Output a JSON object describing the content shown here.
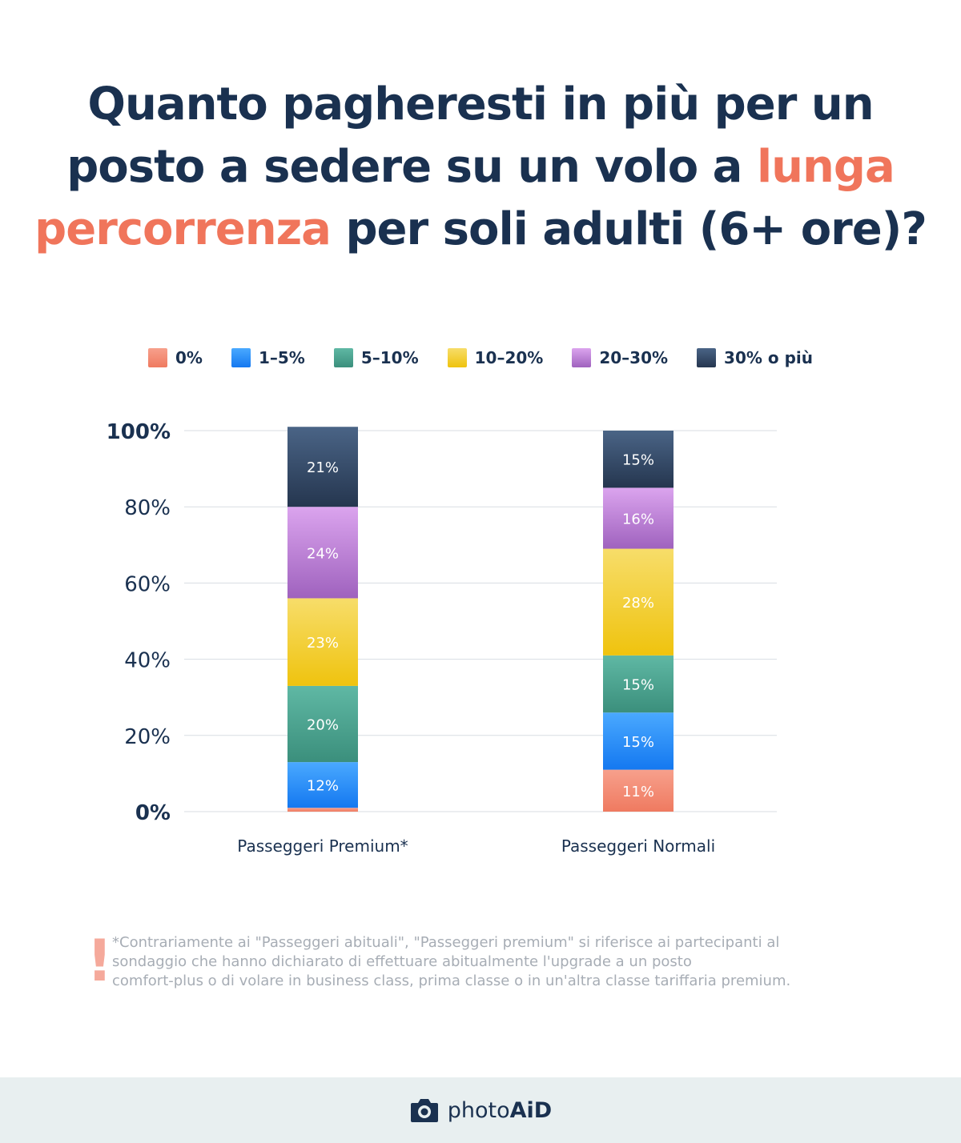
{
  "title": {
    "line1": "Quanto pagheresti in più per un",
    "line2_start": "posto a sedere su un volo a ",
    "line2_highlight": "lunga",
    "line3_highlight": "percorrenza",
    "line3_end": " per soli adulti (6+ ore)?"
  },
  "colors": {
    "title": "#1a3150",
    "highlight": "#f0755b"
  },
  "chart_data": {
    "type": "bar",
    "stacked": true,
    "categories": [
      "Passeggeri Premium*",
      "Passeggeri Normali"
    ],
    "series": [
      {
        "name": "0%",
        "values": [
          1,
          11
        ],
        "labels": [
          "",
          "11%"
        ],
        "color_top": "#f7a08c",
        "color_bottom": "#ef7a60"
      },
      {
        "name": "1–5%",
        "values": [
          12,
          15
        ],
        "labels": [
          "12%",
          "15%"
        ],
        "color_top": "#4aa9ff",
        "color_bottom": "#1478f0"
      },
      {
        "name": "5–10%",
        "values": [
          20,
          15
        ],
        "labels": [
          "20%",
          "15%"
        ],
        "color_top": "#5fb8a4",
        "color_bottom": "#3b8f7c"
      },
      {
        "name": "10–20%",
        "values": [
          23,
          28
        ],
        "labels": [
          "23%",
          "28%"
        ],
        "color_top": "#f7dd6a",
        "color_bottom": "#efc30e"
      },
      {
        "name": "20–30%",
        "values": [
          24,
          16
        ],
        "labels": [
          "24%",
          "16%"
        ],
        "color_top": "#dba4ee",
        "color_bottom": "#9f62be"
      },
      {
        "name": "30% o più",
        "values": [
          21,
          15
        ],
        "labels": [
          "21%",
          "15%"
        ],
        "color_top": "#4a6486",
        "color_bottom": "#25364f"
      }
    ],
    "ylim": [
      0,
      100
    ],
    "yticks": [
      "0%",
      "20%",
      "40%",
      "60%",
      "80%",
      "100%"
    ],
    "ytick_values": [
      0,
      20,
      40,
      60,
      80,
      100
    ],
    "grid": true,
    "legend": "top-center"
  },
  "footnote": {
    "line1": "*Contrariamente ai \"Passeggeri abituali\", \"Passeggeri premium\" si riferisce ai partecipanti al",
    "line2": "sondaggio che hanno dichiarato di effettuare abitualmente l'upgrade a un posto",
    "line3": "comfort-plus o di volare in business class, prima classe o in un'altra classe tariffaria premium.",
    "mark": "!"
  },
  "footer": {
    "brand_light": "photo",
    "brand_bold": "AiD",
    "icon": "camera-icon"
  }
}
